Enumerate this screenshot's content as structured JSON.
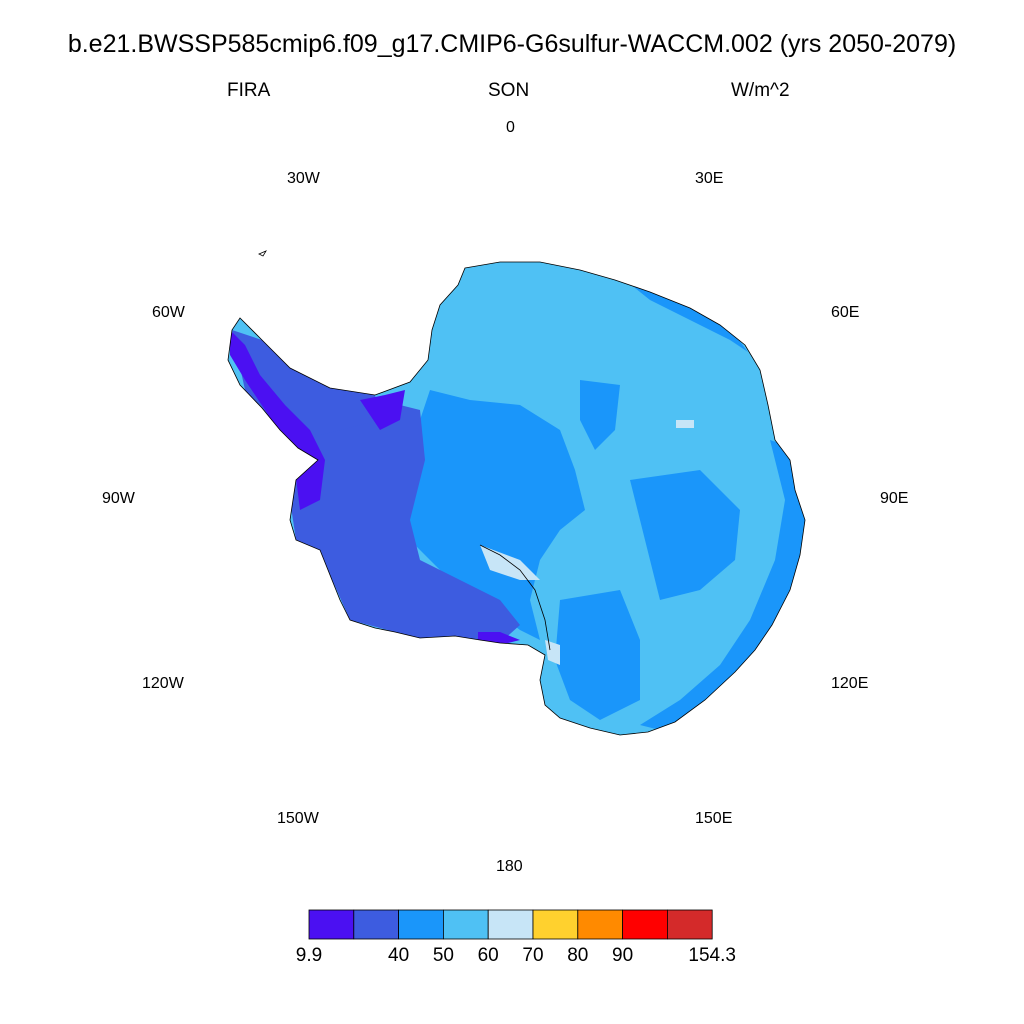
{
  "header": {
    "title": "b.e21.BWSSP585cmip6.f09_g17.CMIP6-G6sulfur-WACCM.002 (yrs 2050-2079)",
    "variable": "FIRA",
    "season": "SON",
    "units": "W/m^2"
  },
  "longitude_labels": [
    "0",
    "30E",
    "60E",
    "90E",
    "120E",
    "150E",
    "180",
    "150W",
    "120W",
    "90W",
    "60W",
    "30W"
  ],
  "colorbar": {
    "colors": [
      "#4B10F2",
      "#3D5CE0",
      "#1A96FA",
      "#4FC1F4",
      "#C7E5F7",
      "#FFD12E",
      "#FF8A00",
      "#FF0000",
      "#D42A2A"
    ],
    "labels": [
      "9.9",
      "40",
      "50",
      "60",
      "70",
      "80",
      "90",
      "154.3"
    ]
  },
  "map_colors": {
    "ocean": "#ffffff",
    "coastline": "#000000"
  }
}
